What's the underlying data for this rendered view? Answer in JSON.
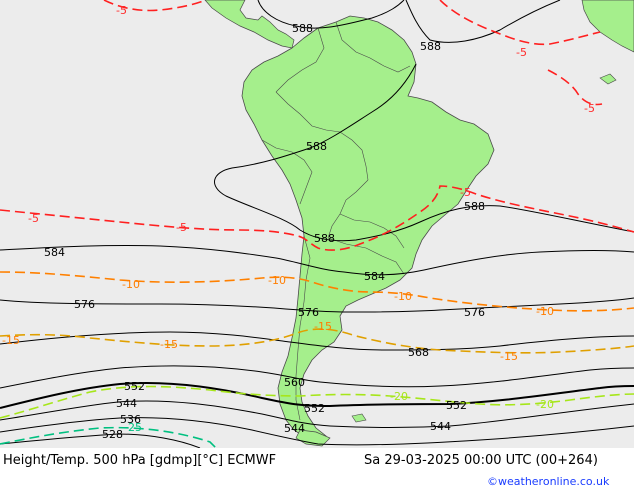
{
  "map": {
    "colors": {
      "ocean": "#ececec",
      "land": "#a5ef8c",
      "border": "#4a4a4a",
      "height_line": "#000000",
      "temp_warm": "#ff2020",
      "temp_orange": "#ff8000",
      "temp_yellow": "#e0a000",
      "temp_lime": "#a6e61a",
      "temp_cold": "#00c080"
    },
    "height_labels": [
      "588",
      "588",
      "588",
      "588",
      "588",
      "584",
      "584",
      "576",
      "576",
      "576",
      "568",
      "560",
      "552",
      "552",
      "552",
      "544",
      "544",
      "544",
      "536",
      "528"
    ],
    "temp_labels": [
      "-5",
      "-5",
      "-5",
      "-5",
      "-5",
      "-5",
      "-10",
      "-10",
      "-10",
      "-10",
      "-15",
      "-15",
      "-15",
      "-15",
      "-20",
      "-20",
      "-25"
    ]
  },
  "footer": {
    "title": "Height/Temp. 500 hPa [gdmp][°C] ECMWF",
    "valid_time": "Sa 29-03-2025 00:00 UTC (00+264)",
    "credit": "©weatheronline.co.uk"
  }
}
